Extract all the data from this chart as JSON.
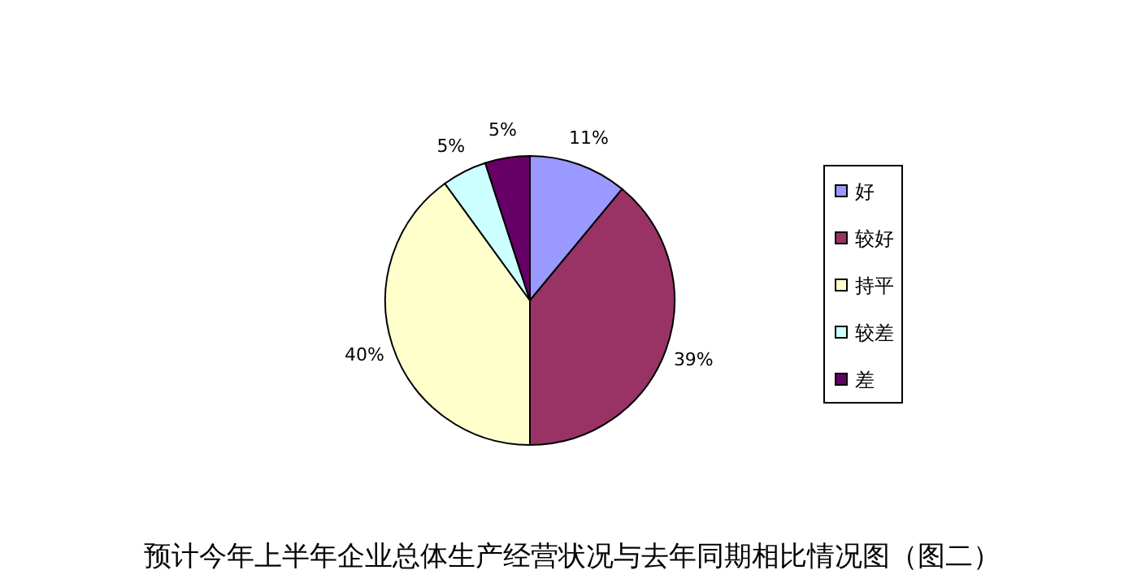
{
  "chart_data": {
    "type": "pie",
    "title": "预计今年上半年企业总体生产经营状况与去年同期相比情况图（图二）",
    "categories": [
      "好",
      "较好",
      "持平",
      "较差",
      "差"
    ],
    "values": [
      11,
      39,
      40,
      5,
      5
    ],
    "colors": [
      "#9999ff",
      "#993366",
      "#ffffcc",
      "#ccffff",
      "#660066"
    ],
    "value_labels": [
      "11%",
      "39%",
      "40%",
      "5%",
      "5%"
    ],
    "legend": "right"
  }
}
